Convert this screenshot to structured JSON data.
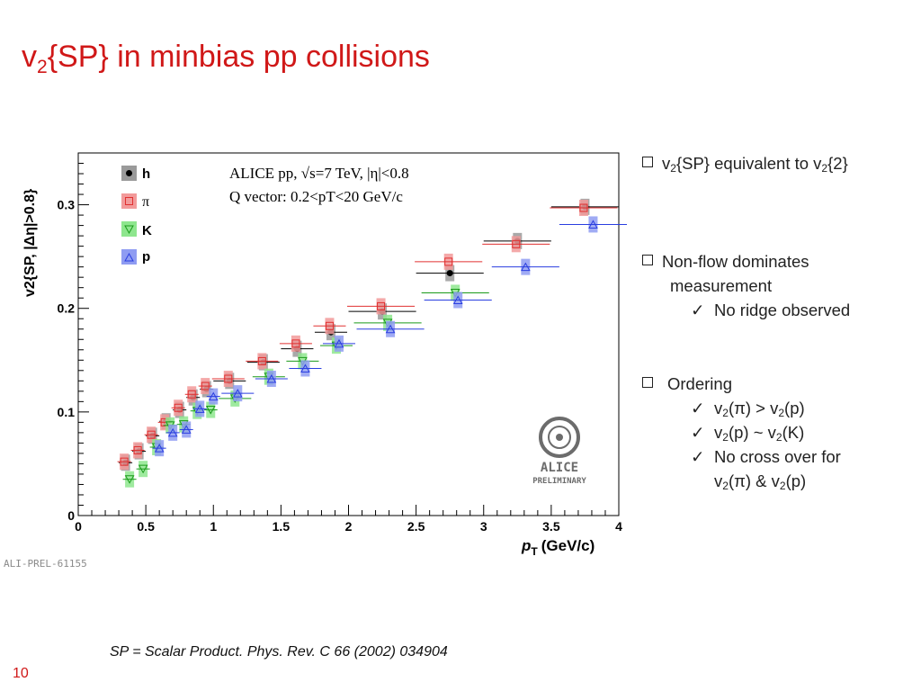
{
  "slide": {
    "title_v": "v",
    "title_sub": "2",
    "title_rest": "{SP} in minbias pp collisions",
    "page_number": "10",
    "footnote": "SP = Scalar Product. Phys. Rev. C 66 (2002) 034904",
    "prelim_id": "ALI-PREL-61155"
  },
  "bullets": {
    "b1_v": "v",
    "b1_sub1": "2",
    "b1_mid": "{SP} equivalent to v",
    "b1_sub2": "2",
    "b1_end": "{2}",
    "b2_line1": "Non-flow dominates",
    "b2_line2": "measurement",
    "b2_check1": "No ridge observed",
    "b3_head": "Ordering",
    "b3_c1_a": "v",
    "b3_c1_s1": "2",
    "b3_c1_b": "(π) > v",
    "b3_c1_s2": "2",
    "b3_c1_c": "(p)",
    "b3_c2_a": "v",
    "b3_c2_s1": "2",
    "b3_c2_b": "(p) ~ v",
    "b3_c2_s2": "2",
    "b3_c2_c": "(K)",
    "b3_c3_line1": "No cross over for",
    "b3_c3_a": "v",
    "b3_c3_s1": "2",
    "b3_c3_b": "(π) & v",
    "b3_c3_s2": "2",
    "b3_c3_c": "(p)",
    "check_mark": "✓"
  },
  "logo": {
    "top": "ALICE",
    "bottom": "PRELIMINARY"
  },
  "chart_data": {
    "type": "scatter",
    "xlabel_main": "p",
    "xlabel_sub": "T",
    "xlabel_unit": "(GeV/c)",
    "ylabel": "v2{SP, |Δη|>0.8}",
    "xlim": [
      0,
      4
    ],
    "ylim": [
      0,
      0.35
    ],
    "x_ticks": [
      "0",
      "0.5",
      "1",
      "1.5",
      "2",
      "2.5",
      "3",
      "3.5",
      "4"
    ],
    "y_ticks": [
      "0",
      "0.1",
      "0.2",
      "0.3"
    ],
    "annotation_line1": "ALICE pp, √s=7 TeV, |η|<0.8",
    "annotation_line2": "Q vector: 0.2<pT<20 GeV/c",
    "legend_position": "top-left",
    "series": [
      {
        "name": "h",
        "marker": "filled-circle",
        "color": "#000000",
        "sys_color": "#9a9a9a",
        "x": [
          0.35,
          0.45,
          0.55,
          0.65,
          0.75,
          0.85,
          0.95,
          1.12,
          1.37,
          1.62,
          1.87,
          2.25,
          2.75,
          3.25,
          3.75
        ],
        "y": [
          0.051,
          0.062,
          0.077,
          0.091,
          0.102,
          0.114,
          0.122,
          0.13,
          0.148,
          0.161,
          0.177,
          0.197,
          0.234,
          0.265,
          0.298
        ],
        "xerr": [
          0.05,
          0.05,
          0.05,
          0.05,
          0.05,
          0.05,
          0.05,
          0.12,
          0.12,
          0.12,
          0.12,
          0.25,
          0.25,
          0.25,
          0.25
        ]
      },
      {
        "name": "π",
        "marker": "open-square",
        "color": "#e03030",
        "sys_color": "#f29a9a",
        "x": [
          0.34,
          0.44,
          0.54,
          0.64,
          0.74,
          0.84,
          0.94,
          1.11,
          1.36,
          1.61,
          1.86,
          2.24,
          2.74,
          3.24,
          3.74
        ],
        "y": [
          0.052,
          0.063,
          0.078,
          0.09,
          0.104,
          0.117,
          0.125,
          0.132,
          0.149,
          0.166,
          0.183,
          0.202,
          0.245,
          0.262,
          0.297
        ],
        "xerr": [
          0.05,
          0.05,
          0.05,
          0.05,
          0.05,
          0.05,
          0.05,
          0.12,
          0.12,
          0.12,
          0.12,
          0.25,
          0.25,
          0.25,
          0.25
        ]
      },
      {
        "name": "K",
        "marker": "open-triangle-down",
        "color": "#1a9a1a",
        "sys_color": "#8ee68e",
        "x": [
          0.38,
          0.48,
          0.58,
          0.68,
          0.78,
          0.88,
          0.98,
          1.16,
          1.41,
          1.66,
          1.91,
          2.29,
          2.79
        ],
        "y": [
          0.035,
          0.045,
          0.066,
          0.087,
          0.088,
          0.101,
          0.102,
          0.113,
          0.134,
          0.149,
          0.164,
          0.186,
          0.215
        ],
        "xerr": [
          0.05,
          0.05,
          0.05,
          0.05,
          0.05,
          0.05,
          0.05,
          0.12,
          0.12,
          0.12,
          0.12,
          0.25,
          0.25
        ]
      },
      {
        "name": "p",
        "marker": "open-triangle-up",
        "color": "#2a3ee0",
        "sys_color": "#8f9cf2",
        "x": [
          0.6,
          0.7,
          0.8,
          0.9,
          1.0,
          1.18,
          1.43,
          1.68,
          1.93,
          2.31,
          2.81,
          3.31,
          3.81
        ],
        "y": [
          0.065,
          0.08,
          0.083,
          0.103,
          0.115,
          0.118,
          0.132,
          0.142,
          0.166,
          0.18,
          0.208,
          0.24,
          0.281
        ],
        "xerr": [
          0.05,
          0.05,
          0.05,
          0.05,
          0.05,
          0.12,
          0.12,
          0.12,
          0.12,
          0.25,
          0.25,
          0.25,
          0.25
        ]
      }
    ]
  }
}
